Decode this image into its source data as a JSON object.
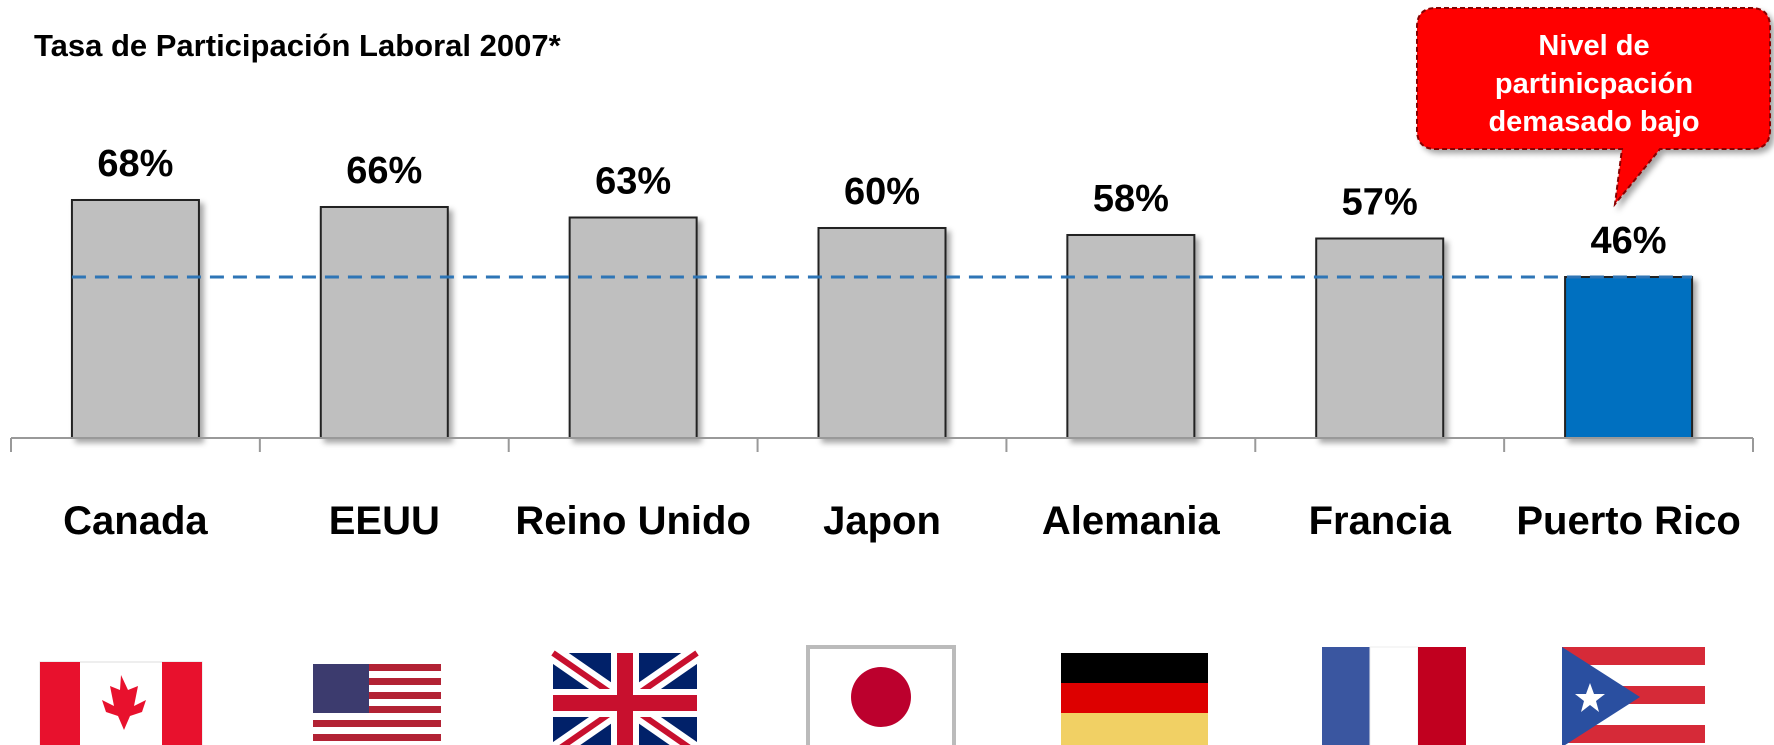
{
  "chart_data": {
    "type": "bar",
    "title": "Tasa de Participación Laboral 2007*",
    "categories": [
      "Canada",
      "EEUU",
      "Reino Unido",
      "Japon",
      "Alemania",
      "Francia",
      "Puerto Rico"
    ],
    "values": [
      68,
      66,
      63,
      60,
      58,
      57,
      46
    ],
    "value_labels": [
      "68%",
      "66%",
      "63%",
      "60%",
      "58%",
      "57%",
      "46%"
    ],
    "colors": [
      "#bfbfbf",
      "#bfbfbf",
      "#bfbfbf",
      "#bfbfbf",
      "#bfbfbf",
      "#bfbfbf",
      "#0070c0"
    ],
    "ylim": [
      0,
      100
    ],
    "annotation": [
      "Nivel de",
      "partinicpación",
      "demasado bajo"
    ]
  }
}
